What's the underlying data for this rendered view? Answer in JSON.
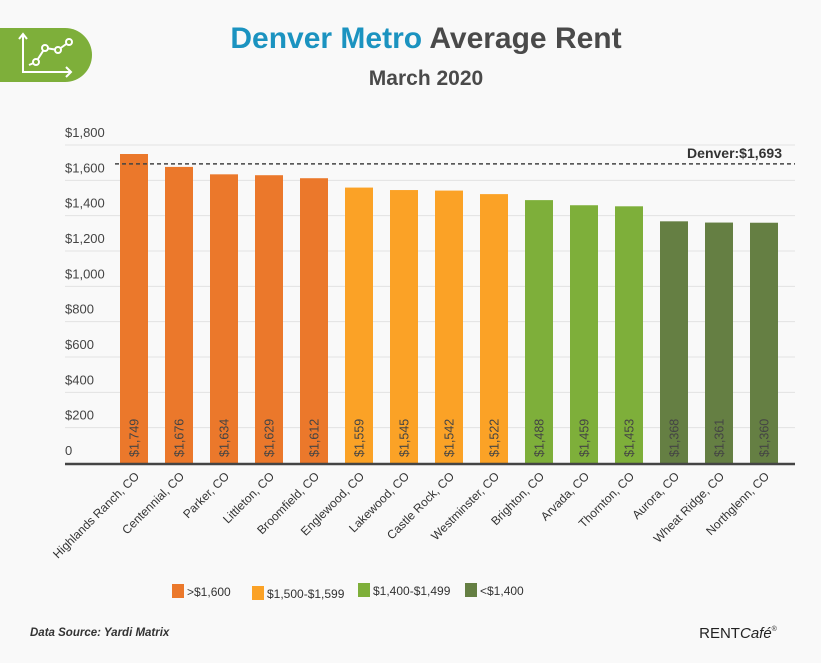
{
  "chart_data": {
    "type": "bar",
    "title_part1": "Denver Metro",
    "title_part2": "Average Rent",
    "subtitle": "March 2020",
    "categories": [
      "Highlands Ranch, CO",
      "Centennial, CO",
      "Parker, CO",
      "Littleton, CO",
      "Broomfield, CO",
      "Englewood, CO",
      "Lakewood, CO",
      "Castle Rock, CO",
      "Westminster, CO",
      "Brighton, CO",
      "Arvada, CO",
      "Thornton, CO",
      "Aurora, CO",
      "Wheat Ridge, CO",
      "Northglenn, CO"
    ],
    "values": [
      1749,
      1676,
      1634,
      1629,
      1612,
      1559,
      1545,
      1542,
      1522,
      1488,
      1459,
      1453,
      1368,
      1361,
      1360
    ],
    "value_labels": [
      "$1,749",
      "$1,676",
      "$1,634",
      "$1,629",
      "$1,612",
      "$1,559",
      "$1,545",
      "$1,542",
      "$1,522",
      "$1,488",
      "$1,459",
      "$1,453",
      "$1,368",
      "$1,361",
      "$1,360"
    ],
    "ylim": [
      0,
      1800
    ],
    "yticks": [
      0,
      200,
      400,
      600,
      800,
      1000,
      1200,
      1400,
      1600,
      1800
    ],
    "ytick_labels": [
      "0",
      "$200",
      "$400",
      "$600",
      "$800",
      "$1,000",
      "$1,200",
      "$1,400",
      "$1,600",
      "$1,800"
    ],
    "reference_line": {
      "value": 1693,
      "label": "Denver:$1,693"
    },
    "grid": true,
    "legend": [
      {
        "label": ">$1,600",
        "color": "#EB782B",
        "min": 1600
      },
      {
        "label": "$1,500-$1,599",
        "color": "#FBA226",
        "min": 1500
      },
      {
        "label": "$1,400-$1,499",
        "color": "#7EAF3A",
        "min": 1400
      },
      {
        "label": "<$1,400",
        "color": "#657F43",
        "min": 0
      }
    ],
    "legend_placement": "bottom"
  },
  "footer": {
    "source": "Data Source: Yardi Matrix",
    "brand": "RENT",
    "brand_italic": "Café",
    "brand_mark": "®"
  },
  "colors": {
    "title_blue": "#1B93C0",
    "title_gray": "#4a4a4a",
    "badge_green": "#7EAF3A"
  }
}
